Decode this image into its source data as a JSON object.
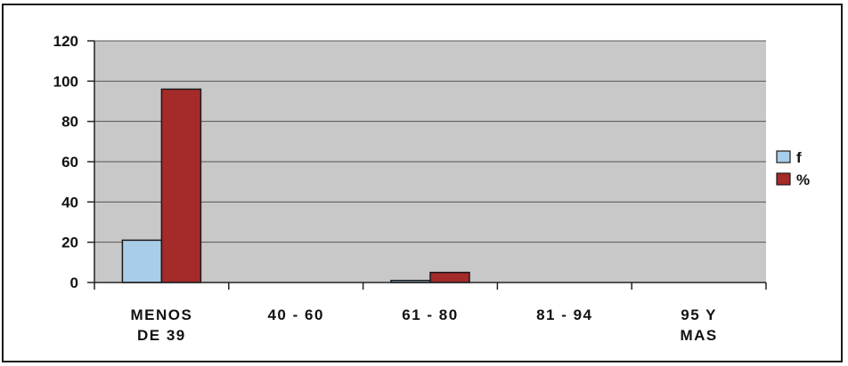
{
  "chart_data": {
    "type": "bar",
    "categories": [
      [
        "MENOS",
        "DE 39"
      ],
      [
        "40 - 60"
      ],
      [
        "61 - 80"
      ],
      [
        "81 - 94"
      ],
      [
        "95 Y",
        "MAS"
      ]
    ],
    "series": [
      {
        "name": "f",
        "values": [
          21,
          0,
          1,
          0,
          0
        ],
        "color": "#a9cde8"
      },
      {
        "name": "%",
        "values": [
          96,
          0,
          5,
          0,
          0
        ],
        "color": "#a52a2a"
      }
    ],
    "ylim": [
      0,
      120
    ],
    "yticks": [
      0,
      20,
      40,
      60,
      80,
      100,
      120
    ],
    "grid": true,
    "plot_background": "#c8c8c8",
    "legend_position": "right"
  }
}
